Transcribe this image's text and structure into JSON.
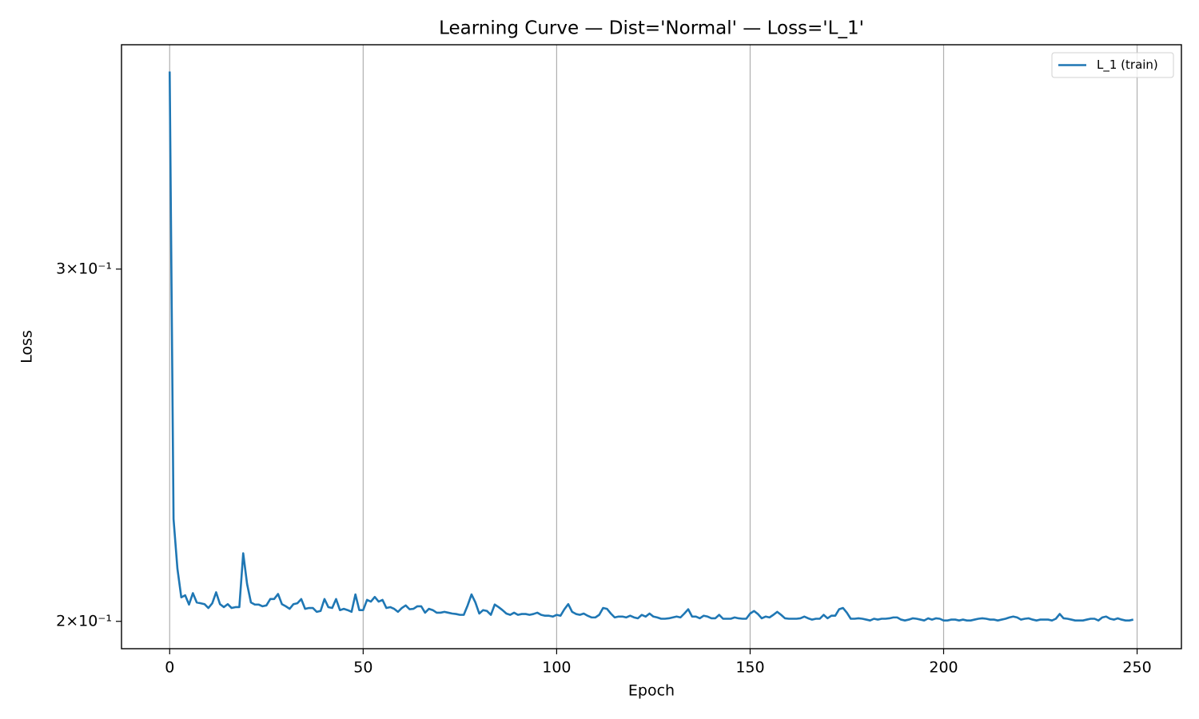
{
  "chart_data": {
    "type": "line",
    "title": "Learning Curve — Dist='Normal' — Loss='L_1'",
    "xlabel": "Epoch",
    "ylabel": "Loss",
    "x": [
      0,
      1,
      2,
      3,
      4,
      5,
      6,
      7,
      8,
      9,
      10,
      11,
      12,
      13,
      14,
      15,
      16,
      17,
      18,
      19,
      20,
      21,
      22,
      23,
      24,
      25,
      26,
      27,
      28,
      29,
      30,
      31,
      32,
      33,
      34,
      35,
      36,
      37,
      38,
      39,
      40,
      41,
      42,
      43,
      44,
      45,
      46,
      47,
      48,
      49,
      50,
      51,
      52,
      53,
      54,
      55,
      56,
      57,
      58,
      59,
      60,
      61,
      62,
      63,
      64,
      65,
      66,
      67,
      68,
      69,
      70,
      71,
      72,
      73,
      74,
      75,
      76,
      77,
      78,
      79,
      80,
      81,
      82,
      83,
      84,
      85,
      86,
      87,
      88,
      89,
      90,
      91,
      92,
      93,
      94,
      95,
      96,
      97,
      98,
      99,
      100,
      101,
      102,
      103,
      104,
      105,
      106,
      107,
      108,
      109,
      110,
      111,
      112,
      113,
      114,
      115,
      116,
      117,
      118,
      119,
      120,
      121,
      122,
      123,
      124,
      125,
      126,
      127,
      128,
      129,
      130,
      131,
      132,
      133,
      134,
      135,
      136,
      137,
      138,
      139,
      140,
      141,
      142,
      143,
      144,
      145,
      146,
      147,
      148,
      149,
      150,
      151,
      152,
      153,
      154,
      155,
      156,
      157,
      158,
      159,
      160,
      161,
      162,
      163,
      164,
      165,
      166,
      167,
      168,
      169,
      170,
      171,
      172,
      173,
      174,
      175,
      176,
      177,
      178,
      179,
      180,
      181,
      182,
      183,
      184,
      185,
      186,
      187,
      188,
      189,
      190,
      191,
      192,
      193,
      194,
      195,
      196,
      197,
      198,
      199,
      200,
      201,
      202,
      203,
      204,
      205,
      206,
      207,
      208,
      209,
      210,
      211,
      212,
      213,
      214,
      215,
      216,
      217,
      218,
      219,
      220,
      221,
      222,
      223,
      224,
      225,
      226,
      227,
      228,
      229,
      230,
      231,
      232,
      233,
      234,
      235,
      236,
      237,
      238,
      239,
      240,
      241,
      242,
      243,
      244,
      245,
      246,
      247,
      248,
      249
    ],
    "series": [
      {
        "name": "L_1 (train)",
        "color": "#1f77b4",
        "values": [
          0.3766,
          0.225,
          0.2125,
          0.2056,
          0.2061,
          0.2039,
          0.2066,
          0.2044,
          0.2042,
          0.204,
          0.2031,
          0.2042,
          0.2068,
          0.204,
          0.2033,
          0.204,
          0.2031,
          0.2033,
          0.2033,
          0.2163,
          0.2088,
          0.2044,
          0.2039,
          0.2039,
          0.2035,
          0.2037,
          0.2052,
          0.2052,
          0.2064,
          0.204,
          0.2035,
          0.2029,
          0.204,
          0.2042,
          0.2052,
          0.2029,
          0.2031,
          0.2031,
          0.2022,
          0.2024,
          0.2052,
          0.2033,
          0.2031,
          0.2052,
          0.2026,
          0.2029,
          0.2026,
          0.2022,
          0.2063,
          0.2026,
          0.2026,
          0.205,
          0.2046,
          0.2057,
          0.2046,
          0.205,
          0.2031,
          0.2033,
          0.2029,
          0.2022,
          0.2031,
          0.2037,
          0.2028,
          0.2029,
          0.2035,
          0.2035,
          0.202,
          0.2029,
          0.2026,
          0.202,
          0.202,
          0.2022,
          0.202,
          0.2018,
          0.2017,
          0.2015,
          0.2015,
          0.2037,
          0.2063,
          0.2044,
          0.2018,
          0.2026,
          0.2024,
          0.2015,
          0.2039,
          0.2033,
          0.2026,
          0.2018,
          0.2015,
          0.202,
          0.2015,
          0.2017,
          0.2017,
          0.2015,
          0.2017,
          0.202,
          0.2015,
          0.2013,
          0.2013,
          0.2011,
          0.2015,
          0.2013,
          0.2028,
          0.204,
          0.2022,
          0.2017,
          0.2015,
          0.2018,
          0.2013,
          0.2009,
          0.2009,
          0.2015,
          0.2031,
          0.2029,
          0.2018,
          0.2009,
          0.2011,
          0.2011,
          0.2009,
          0.2013,
          0.2009,
          0.2007,
          0.2015,
          0.2011,
          0.2018,
          0.2011,
          0.2009,
          0.2006,
          0.2006,
          0.2007,
          0.2009,
          0.2011,
          0.2009,
          0.2018,
          0.2028,
          0.2011,
          0.2011,
          0.2007,
          0.2013,
          0.2011,
          0.2007,
          0.2007,
          0.2015,
          0.2006,
          0.2006,
          0.2006,
          0.2009,
          0.2007,
          0.2006,
          0.2006,
          0.2018,
          0.2024,
          0.2017,
          0.2007,
          0.2011,
          0.2009,
          0.2015,
          0.2022,
          0.2015,
          0.2007,
          0.2006,
          0.2006,
          0.2006,
          0.2007,
          0.2011,
          0.2007,
          0.2004,
          0.2006,
          0.2006,
          0.2015,
          0.2007,
          0.2013,
          0.2013,
          0.2028,
          0.2031,
          0.202,
          0.2006,
          0.2006,
          0.2007,
          0.2006,
          0.2004,
          0.2002,
          0.2006,
          0.2004,
          0.2006,
          0.2006,
          0.2007,
          0.2009,
          0.2009,
          0.2004,
          0.2002,
          0.2004,
          0.2007,
          0.2006,
          0.2004,
          0.2002,
          0.2007,
          0.2004,
          0.2007,
          0.2006,
          0.2002,
          0.2002,
          0.2004,
          0.2004,
          0.2002,
          0.2004,
          0.2002,
          0.2002,
          0.2004,
          0.2006,
          0.2007,
          0.2006,
          0.2004,
          0.2004,
          0.2002,
          0.2004,
          0.2006,
          0.2009,
          0.2011,
          0.2009,
          0.2004,
          0.2006,
          0.2007,
          0.2004,
          0.2002,
          0.2004,
          0.2004,
          0.2004,
          0.2002,
          0.2006,
          0.2017,
          0.2007,
          0.2006,
          0.2004,
          0.2002,
          0.2002,
          0.2002,
          0.2004,
          0.2006,
          0.2006,
          0.2002,
          0.2009,
          0.2011,
          0.2006,
          0.2004,
          0.2007,
          0.2004,
          0.2002,
          0.2002,
          0.2004
        ]
      }
    ],
    "xlim": [
      -12.45,
      261.45
    ],
    "xticks": [
      0,
      50,
      100,
      150,
      200,
      250
    ],
    "ylim": [
      0.1938,
      0.3884
    ],
    "ylog": true,
    "yticks": [
      {
        "value": 0.2,
        "label": "2×10⁻¹"
      },
      {
        "value": 0.3,
        "label": "3×10⁻¹"
      }
    ],
    "grid": "x",
    "legend": "upper right"
  }
}
